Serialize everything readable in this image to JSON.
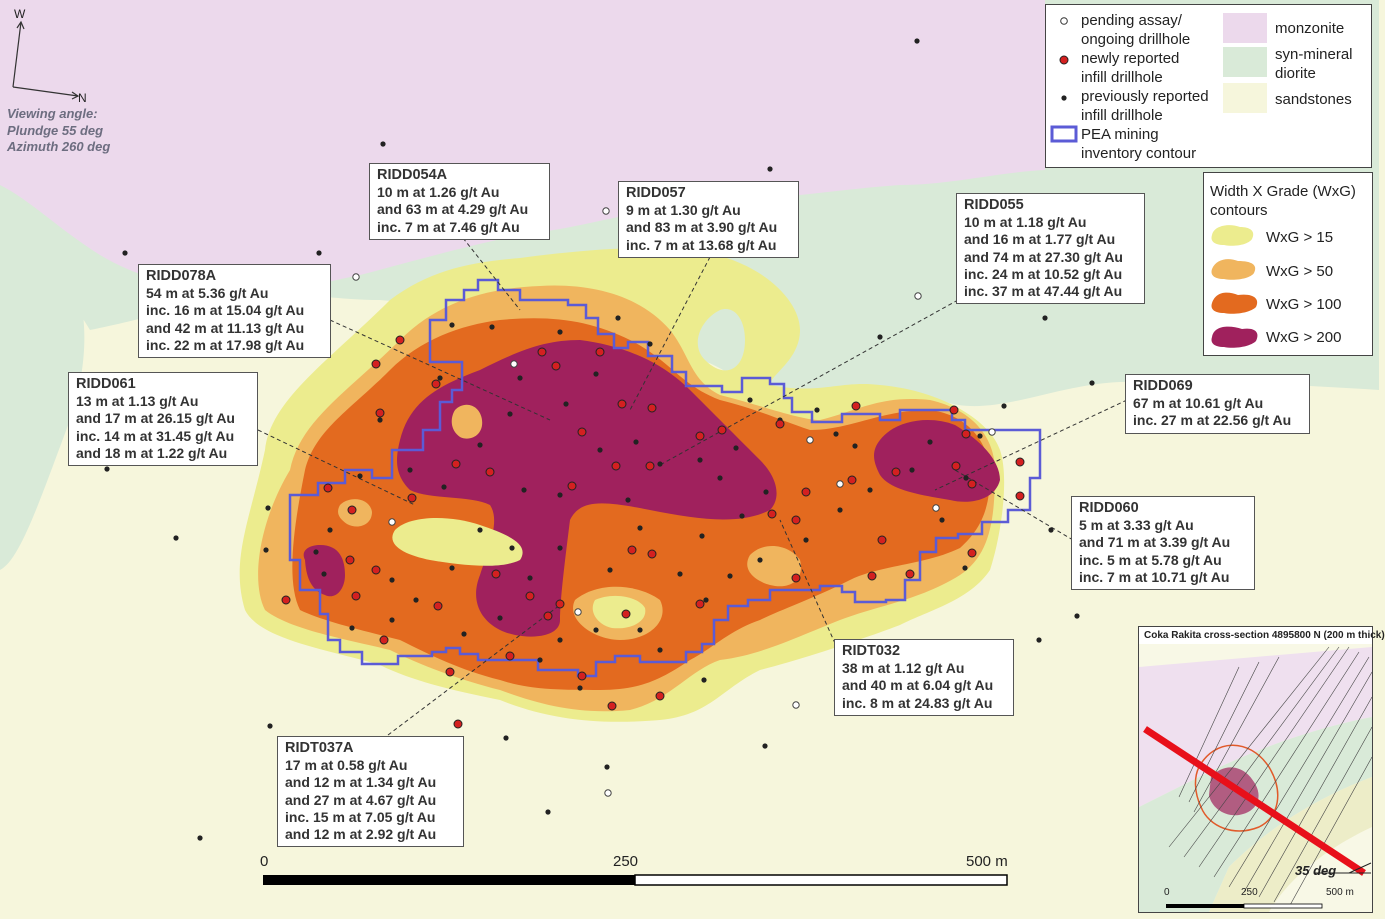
{
  "compass": {
    "north": "N",
    "west": "W"
  },
  "viewing": {
    "line1": "Viewing angle:",
    "line2": "Plundge 55 deg",
    "line3": "Azimuth 260 deg"
  },
  "legend": {
    "pending_1": "pending assay/",
    "pending_2": "ongoing drillhole",
    "newly_1": "newly reported",
    "newly_2": "infill drillhole",
    "previous_1": "previously reported",
    "previous_2": "infill drillhole",
    "pea_1": "PEA mining",
    "pea_2": "inventory contour",
    "monzonite": "monzonite",
    "diorite_1": "syn-mineral",
    "diorite_2": "diorite",
    "sandstones": "sandstones"
  },
  "wxg": {
    "title_1": "Width X Grade (WxG)",
    "title_2": "contours",
    "items": [
      "WxG > 15",
      "WxG > 50",
      "WxG > 100",
      "WxG > 200"
    ]
  },
  "colors": {
    "monzonite": "#ecd9ec",
    "diorite": "#d9ead8",
    "sandstone": "#f6f6dc",
    "wxg15": "#ecec8e",
    "wxg50": "#f0b55e",
    "wxg100": "#e36a1f",
    "wxg200": "#a0215d",
    "pea": "#5b5bd6",
    "new_hole": "#d42020",
    "scale_bar": "#000000"
  },
  "callouts": {
    "ridd054a": {
      "title": "RIDD054A",
      "lines": [
        "10 m at 1.26 g/t Au",
        "and 63 m at 4.29 g/t Au",
        "inc. 7 m at 7.46 g/t Au"
      ]
    },
    "ridd057": {
      "title": "RIDD057",
      "lines": [
        "9 m at 1.30 g/t Au",
        "and 83 m at 3.90 g/t Au",
        "inc. 7 m at 13.68 g/t Au"
      ]
    },
    "ridd055": {
      "title": "RIDD055",
      "lines": [
        "10 m at 1.18 g/t Au",
        "and 16 m at 1.77 g/t Au",
        "and 74 m at 27.30 g/t Au",
        "inc. 24 m at 10.52 g/t Au",
        "inc. 37 m at 47.44 g/t Au"
      ]
    },
    "ridd078a": {
      "title": "RIDD078A",
      "lines": [
        "54 m at 5.36 g/t Au",
        "inc. 16 m at 15.04 g/t Au",
        "and 42 m at 11.13 g/t Au",
        "inc. 22 m at 17.98 g/t Au"
      ]
    },
    "ridd061": {
      "title": "RIDD061",
      "lines": [
        "13 m at 1.13 g/t Au",
        "and 17 m at 26.15 g/t Au",
        "inc. 14 m at 31.45 g/t Au",
        "and 18 m at 1.22 g/t Au"
      ]
    },
    "ridd069": {
      "title": "RIDD069",
      "lines": [
        "67 m at 10.61 g/t Au",
        "inc. 27 m at 22.56 g/t Au"
      ]
    },
    "ridd060": {
      "title": "RIDD060",
      "lines": [
        "5 m at 3.33 g/t Au",
        "and 71 m at 3.39 g/t Au",
        "inc. 5 m at 5.78 g/t Au",
        "inc. 7 m at 10.71 g/t Au"
      ]
    },
    "ridt032": {
      "title": "RIDT032",
      "lines": [
        "38 m at 1.12 g/t Au",
        "and 40 m at 6.04 g/t Au",
        "inc. 8 m at 24.83 g/t Au"
      ]
    },
    "ridt037a": {
      "title": "RIDT037A",
      "lines": [
        "17 m at 0.58 g/t Au",
        "and 12 m at 1.34 g/t Au",
        "and 27 m at 4.67 g/t Au",
        "inc. 15 m at 7.05 g/t Au",
        "and 12 m at 2.92 g/t Au"
      ]
    }
  },
  "scale": {
    "ticks": [
      "0",
      "250",
      "500 m"
    ]
  },
  "inset": {
    "title": "Coka Rakita cross-section 4895800 N (200 m thick)",
    "angle": "35 deg",
    "scale": [
      "0",
      "250",
      "500 m"
    ]
  }
}
